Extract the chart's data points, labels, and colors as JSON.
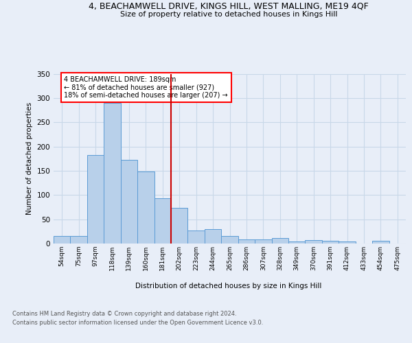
{
  "title_line1": "4, BEACHAMWELL DRIVE, KINGS HILL, WEST MALLING, ME19 4QF",
  "title_line2": "Size of property relative to detached houses in Kings Hill",
  "xlabel": "Distribution of detached houses by size in Kings Hill",
  "ylabel": "Number of detached properties",
  "bin_labels": [
    "54sqm",
    "75sqm",
    "97sqm",
    "118sqm",
    "139sqm",
    "160sqm",
    "181sqm",
    "202sqm",
    "223sqm",
    "244sqm",
    "265sqm",
    "286sqm",
    "307sqm",
    "328sqm",
    "349sqm",
    "370sqm",
    "391sqm",
    "412sqm",
    "433sqm",
    "454sqm",
    "475sqm"
  ],
  "bar_heights": [
    15,
    15,
    183,
    290,
    172,
    148,
    93,
    73,
    27,
    30,
    15,
    8,
    9,
    11,
    4,
    7,
    6,
    4,
    0,
    6,
    0
  ],
  "bar_color": "#b8d0ea",
  "bar_edge_color": "#5b9bd5",
  "grid_color": "#c8d8e8",
  "ref_line_x": 6.5,
  "ref_line_color": "#cc0000",
  "annotation_text": "4 BEACHAMWELL DRIVE: 189sqm\n← 81% of detached houses are smaller (927)\n18% of semi-detached houses are larger (207) →",
  "ylim": [
    0,
    350
  ],
  "yticks": [
    0,
    50,
    100,
    150,
    200,
    250,
    300,
    350
  ],
  "footer_line1": "Contains HM Land Registry data © Crown copyright and database right 2024.",
  "footer_line2": "Contains public sector information licensed under the Open Government Licence v3.0.",
  "bg_color": "#e8eef8"
}
